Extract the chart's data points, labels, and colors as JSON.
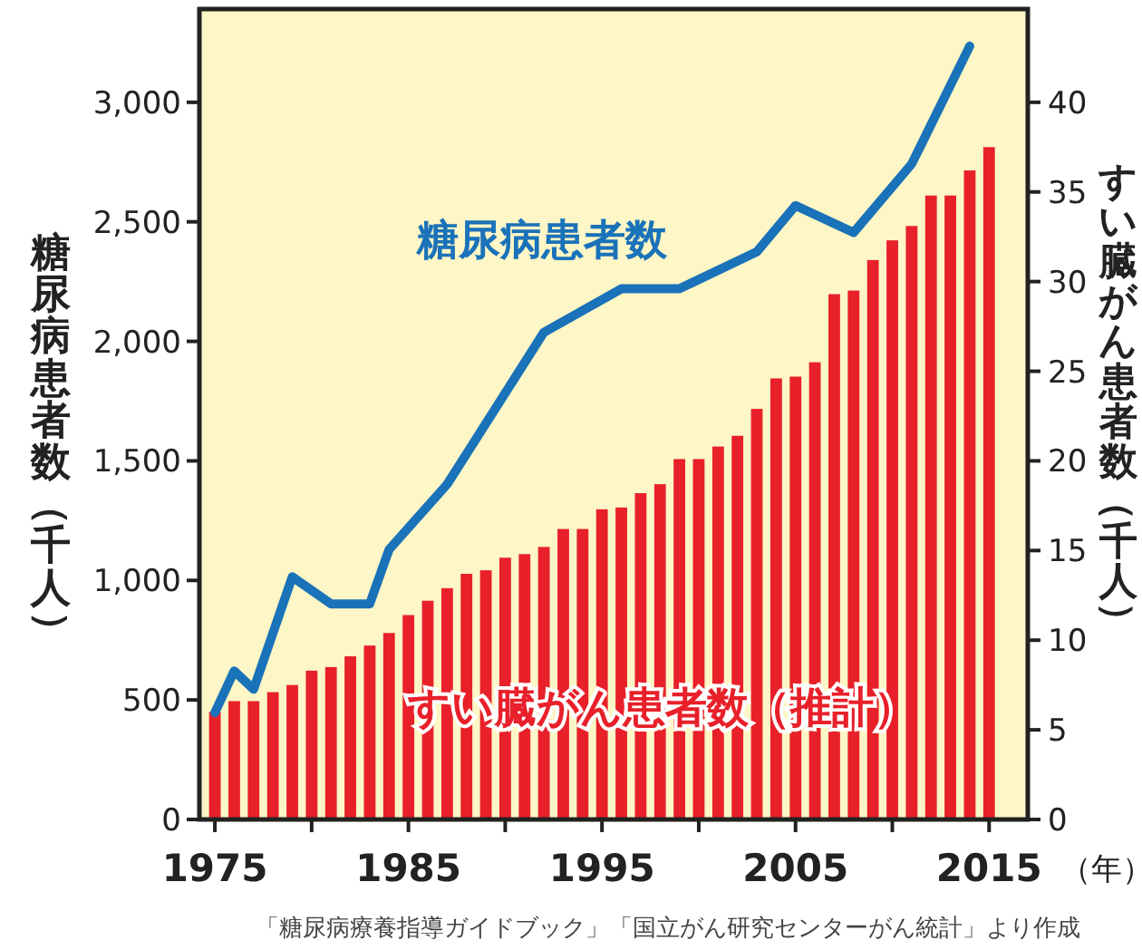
{
  "chart_data": {
    "type": "bar",
    "ylabel": "糖尿病患者数（千人）",
    "y2label": "すい臓がん患者数（千人）",
    "xlabel": "（年）",
    "xlim": [
      1974.2,
      2017
    ],
    "xticks": [
      1975,
      {
        "value": 1980,
        "label": null
      },
      1985,
      {
        "value": 1990,
        "label": null
      },
      1995,
      {
        "value": 2000,
        "label": null
      },
      2005,
      {
        "value": 2010,
        "label": null
      },
      2015
    ],
    "ylim": [
      0,
      3390
    ],
    "yticks": [
      0,
      500,
      {
        "value": 1000,
        "label": "1,000"
      },
      {
        "value": 1500,
        "label": "1,500"
      },
      {
        "value": 2000,
        "label": "2,000"
      },
      {
        "value": 2500,
        "label": "2,500"
      },
      {
        "value": 3000,
        "label": "3,000"
      }
    ],
    "y2lim": [
      0,
      45.2
    ],
    "y2ticks": [
      0,
      5,
      10,
      15,
      20,
      25,
      30,
      35,
      40
    ],
    "grid": false,
    "series": [
      {
        "name": "すい臓がん患者数（推計）",
        "type": "bar",
        "axis": "y2",
        "color": "#e8202a",
        "x": [
          1975,
          1976,
          1977,
          1978,
          1979,
          1980,
          1981,
          1982,
          1983,
          1984,
          1985,
          1986,
          1987,
          1988,
          1989,
          1990,
          1991,
          1992,
          1993,
          1994,
          1995,
          1996,
          1997,
          1998,
          1999,
          2000,
          2001,
          2002,
          2003,
          2004,
          2005,
          2006,
          2007,
          2008,
          2009,
          2010,
          2011,
          2012,
          2013,
          2014,
          2015
        ],
        "values": [
          6.0,
          6.6,
          6.6,
          7.1,
          7.5,
          8.3,
          8.5,
          9.1,
          9.7,
          10.4,
          11.4,
          12.2,
          12.9,
          13.7,
          13.9,
          14.6,
          14.8,
          15.2,
          16.2,
          16.2,
          17.3,
          17.4,
          18.2,
          18.7,
          20.1,
          20.1,
          20.8,
          21.4,
          22.9,
          24.6,
          24.7,
          25.5,
          29.3,
          29.5,
          31.2,
          32.3,
          33.1,
          34.8,
          34.8,
          36.2,
          37.5
        ]
      },
      {
        "name": "糖尿病患者数",
        "type": "line",
        "axis": "y",
        "color": "#1a72b9",
        "x": [
          1975,
          1976,
          1977,
          1979,
          1981,
          1983,
          1984,
          1987,
          1992,
          1996,
          1999,
          2003,
          2005,
          2008,
          2011,
          2014
        ],
        "values": [
          447,
          621,
          545,
          1015,
          902,
          902,
          1129,
          1402,
          2038,
          2220,
          2220,
          2375,
          2568,
          2455,
          2742,
          3235
        ]
      }
    ],
    "annotations": [
      "「糖尿病療養指導ガイドブック」「国立がん研究センターがん統計」より作成"
    ]
  }
}
